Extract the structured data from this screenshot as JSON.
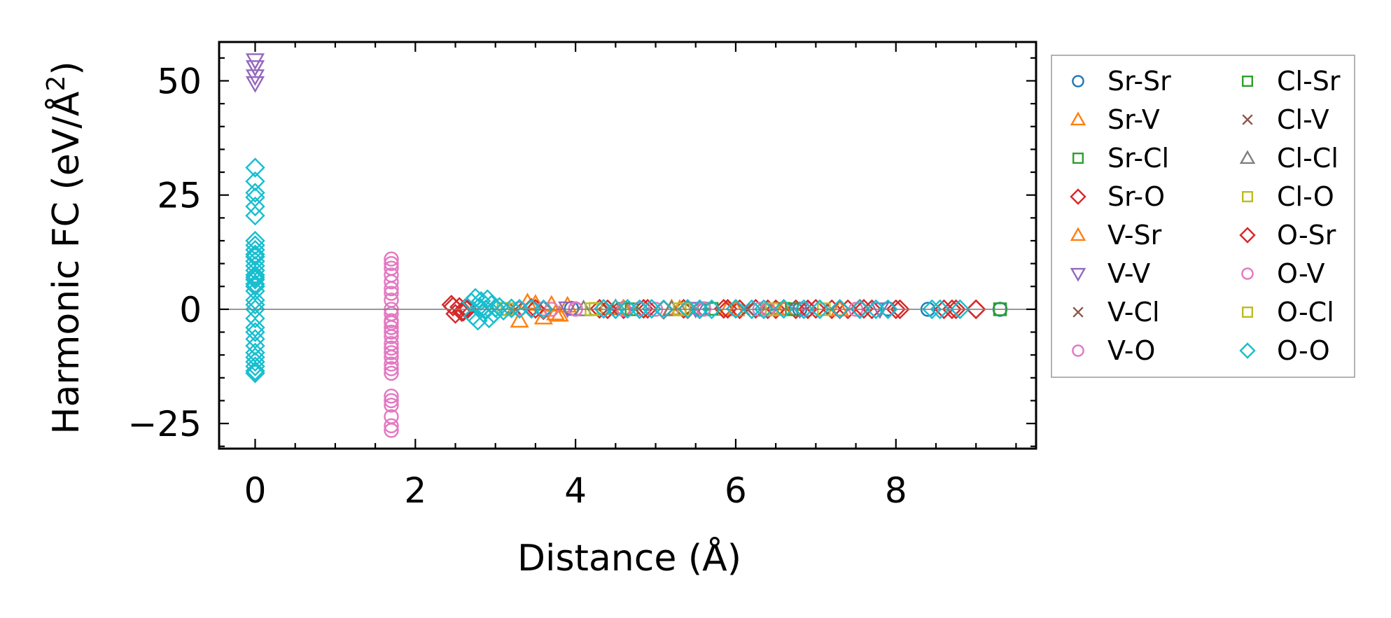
{
  "chart_data": {
    "type": "scatter",
    "xlabel": "Distance (Å)",
    "ylabel": "Harmonic FC (eV/Å",
    "ylabel_sup": "2",
    "ylabel_close": ")",
    "xlim": [
      -0.45,
      9.75
    ],
    "ylim": [
      -30.5,
      58.5
    ],
    "xticks": [
      0,
      2,
      4,
      6,
      8
    ],
    "xtick_labels": [
      "0",
      "2",
      "4",
      "6",
      "8"
    ],
    "yticks": [
      -25,
      0,
      25,
      50
    ],
    "ytick_labels": [
      "−25",
      "0",
      "25",
      "50"
    ],
    "zero_line": 0,
    "grid": false,
    "legend_placement": "outside right",
    "series": [
      {
        "name": "Sr-Sr",
        "marker": "circle",
        "color": "#1f77b4",
        "x": [
          3.95,
          5.6,
          6.8,
          7.9,
          8.4,
          9.3
        ],
        "y": [
          0.2,
          0.1,
          0.0,
          0.1,
          0.0,
          0.0
        ]
      },
      {
        "name": "Sr-V",
        "marker": "triangle-up",
        "color": "#ff7f0e",
        "x": [
          3.3,
          3.4,
          3.6,
          3.7,
          3.8,
          3.9,
          4.5,
          5.2,
          5.9,
          6.5
        ],
        "y": [
          -2.5,
          1.5,
          -1.8,
          1.0,
          -1.2,
          0.8,
          0.3,
          0.2,
          0.1,
          0.1
        ]
      },
      {
        "name": "Sr-Cl",
        "marker": "square",
        "color": "#2ca02c",
        "x": [
          4.6,
          5.6,
          6.6,
          9.3
        ],
        "y": [
          0.1,
          0.0,
          0.1,
          0.0
        ]
      },
      {
        "name": "Sr-O",
        "marker": "diamond",
        "color": "#d62728",
        "x": [
          2.45,
          2.5,
          2.55,
          2.6,
          2.65,
          3.45,
          3.6,
          4.3,
          4.6,
          4.85,
          5.1,
          5.35,
          5.55,
          5.85,
          6.05,
          6.25,
          6.5,
          6.75,
          7.0,
          7.2,
          7.4,
          7.55,
          7.7,
          8.05,
          8.6,
          8.75,
          9.0
        ],
        "y": [
          1.0,
          -1.0,
          0.5,
          -0.5,
          0.0,
          0.3,
          -0.2,
          0.1,
          0.0,
          0.1,
          -0.1,
          0.1,
          0.0,
          0.1,
          0.0,
          0.1,
          0.0,
          0.0,
          0.1,
          0.0,
          0.0,
          0.1,
          0.0,
          0.0,
          0.0,
          0.0,
          0.0
        ]
      },
      {
        "name": "V-Sr",
        "marker": "triangle-up",
        "color": "#ff7f0e",
        "x": [
          3.5,
          3.75,
          4.6,
          5.3,
          6.0,
          6.6,
          7.3
        ],
        "y": [
          1.2,
          -0.9,
          0.2,
          0.1,
          0.0,
          0.1,
          0.0
        ]
      },
      {
        "name": "V-V",
        "marker": "triangle-down",
        "color": "#9467bd",
        "x": [
          0,
          0,
          0,
          0,
          3.9,
          5.5,
          6.8,
          7.8
        ],
        "y": [
          54.5,
          53.0,
          51.0,
          49.5,
          0.2,
          0.1,
          0.0,
          0.0
        ]
      },
      {
        "name": "V-Cl",
        "marker": "x",
        "color": "#8c564b",
        "x": [
          3.2,
          4.4,
          5.5,
          6.1,
          7.2
        ],
        "y": [
          0.1,
          0.0,
          0.1,
          0.0,
          0.0
        ]
      },
      {
        "name": "V-O",
        "marker": "circle",
        "color": "#e377c2",
        "x": [
          1.7,
          1.7,
          1.7,
          1.7,
          1.7,
          1.7,
          1.7,
          1.7,
          1.7,
          1.7,
          1.7,
          1.7,
          1.7,
          1.7,
          1.7,
          1.7,
          1.7,
          1.7,
          1.7,
          1.7,
          1.7,
          1.7,
          1.7,
          1.7,
          1.7,
          1.7,
          3.3,
          3.7,
          4.0,
          4.6,
          5.0,
          5.6,
          6.3,
          6.9,
          7.5
        ],
        "y": [
          11.0,
          10.0,
          9.0,
          6.0,
          4.5,
          3.5,
          2.0,
          0.0,
          -1.0,
          -2.5,
          -4.0,
          -5.0,
          -6.0,
          -7.5,
          -8.5,
          -9.5,
          -10.5,
          -12.0,
          -13.0,
          -14.0,
          -19.0,
          -20.0,
          -21.0,
          -23.5,
          -25.5,
          -26.5,
          0.1,
          0.0,
          0.1,
          0.0,
          0.0,
          0.1,
          0.0,
          0.0,
          0.0
        ]
      },
      {
        "name": "Cl-Sr",
        "marker": "square",
        "color": "#2ca02c",
        "x": [
          4.7,
          5.7,
          6.7,
          9.3
        ],
        "y": [
          0.0,
          0.1,
          0.0,
          0.0
        ]
      },
      {
        "name": "Cl-V",
        "marker": "x",
        "color": "#8c564b",
        "x": [
          3.25,
          4.45,
          5.45,
          6.15
        ],
        "y": [
          0.0,
          0.1,
          0.0,
          0.0
        ]
      },
      {
        "name": "Cl-Cl",
        "marker": "triangle-up",
        "color": "#7f7f7f",
        "x": [
          4.1,
          5.2,
          6.4
        ],
        "y": [
          0.0,
          0.0,
          0.0
        ]
      },
      {
        "name": "Cl-O",
        "marker": "square",
        "color": "#bcbd22",
        "x": [
          3.1,
          4.2,
          5.3,
          6.4,
          7.1
        ],
        "y": [
          0.1,
          0.0,
          0.0,
          0.0,
          0.0
        ]
      },
      {
        "name": "O-Sr",
        "marker": "diamond",
        "color": "#d62728",
        "x": [
          2.47,
          2.58,
          2.62,
          3.5,
          4.4,
          4.9,
          5.4,
          5.9,
          6.4,
          6.9,
          7.3,
          7.6,
          8.0,
          8.7,
          9.0
        ],
        "y": [
          0.6,
          -0.6,
          0.2,
          0.1,
          0.0,
          0.1,
          0.0,
          0.1,
          0.0,
          0.0,
          0.0,
          0.1,
          0.0,
          0.0,
          0.0
        ]
      },
      {
        "name": "O-V",
        "marker": "circle",
        "color": "#e377c2",
        "x": [
          1.7,
          1.7,
          3.3,
          3.6,
          4.0,
          4.8,
          5.6,
          6.4
        ],
        "y": [
          7.5,
          -3.0,
          0.2,
          0.1,
          0.0,
          0.1,
          0.0,
          0.0
        ]
      },
      {
        "name": "O-Cl",
        "marker": "square",
        "color": "#bcbd22",
        "x": [
          3.15,
          4.25,
          5.35,
          6.45
        ],
        "y": [
          0.0,
          0.1,
          0.0,
          0.0
        ]
      },
      {
        "name": "O-O",
        "marker": "diamond",
        "color": "#17becf",
        "x": [
          0,
          0,
          0,
          0,
          0,
          0,
          0,
          0,
          0,
          0,
          0,
          0,
          0,
          0,
          0,
          0,
          0,
          0,
          0,
          0,
          0,
          0,
          0,
          0,
          0,
          0,
          0,
          0,
          0,
          0,
          0,
          0,
          0,
          0,
          2.7,
          2.72,
          2.75,
          2.78,
          2.8,
          2.82,
          2.85,
          2.88,
          2.9,
          2.92,
          2.95,
          2.98,
          3.0,
          3.05,
          3.1,
          3.2,
          3.3,
          3.45,
          3.6,
          4.35,
          4.5,
          4.65,
          4.8,
          4.95,
          5.1,
          5.4,
          5.55,
          5.7,
          6.0,
          6.2,
          6.35,
          6.6,
          6.85,
          7.05,
          7.3,
          7.55,
          7.75,
          7.9,
          8.45,
          8.55,
          8.8
        ],
        "y": [
          31.0,
          28.0,
          25.5,
          24.5,
          22.5,
          20.5,
          15.0,
          14.0,
          13.0,
          12.0,
          11.5,
          10.5,
          9.5,
          8.5,
          7.5,
          7.0,
          6.5,
          5.5,
          5.0,
          4.0,
          2.0,
          1.0,
          0.0,
          -2.0,
          -4.0,
          -5.0,
          -6.5,
          -8.0,
          -9.5,
          -10.5,
          -11.5,
          -12.5,
          -13.5,
          -14.0,
          1.5,
          -1.5,
          2.5,
          -2.5,
          0.5,
          1.8,
          -0.8,
          0.0,
          2.2,
          -2.0,
          1.0,
          -1.0,
          0.3,
          0.5,
          -0.3,
          0.2,
          0.1,
          0.1,
          0.0,
          0.1,
          0.0,
          0.1,
          0.0,
          0.1,
          0.0,
          0.1,
          0.0,
          0.0,
          0.1,
          0.0,
          0.0,
          0.1,
          0.0,
          0.0,
          0.1,
          0.0,
          0.0,
          0.0,
          0.0,
          0.0,
          0.0
        ]
      }
    ]
  }
}
